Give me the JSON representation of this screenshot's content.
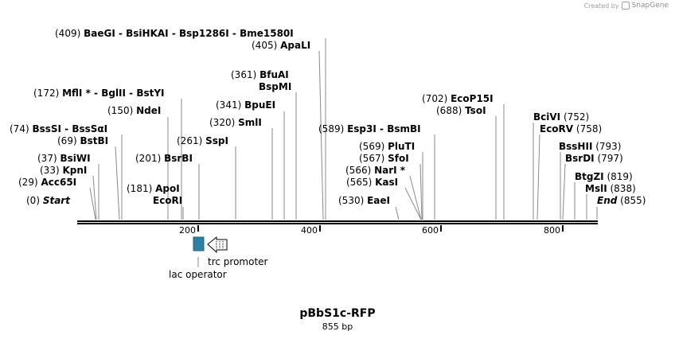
{
  "credit": {
    "prefix": "Created by",
    "brand": "SnapGene"
  },
  "plasmid": {
    "name": "pBbS1c-RFP",
    "size_label": "855 bp",
    "length": 855
  },
  "axis_ticks": [
    "200",
    "400",
    "600",
    "800"
  ],
  "sites": [
    {
      "id": "bae",
      "pos": "(409)",
      "names": [
        "BaeGI",
        "BsiHKAI",
        "Bsp1286I",
        "Bme1580I"
      ]
    },
    {
      "id": "apal",
      "pos": "(405)",
      "names": [
        "ApaLI"
      ]
    },
    {
      "id": "bfuai",
      "pos": "(361)",
      "names": [
        "BfuAI"
      ]
    },
    {
      "id": "bspmi",
      "pos": "",
      "names": [
        "BspMI"
      ]
    },
    {
      "id": "bpuei",
      "pos": "(341)",
      "names": [
        "BpuEI"
      ]
    },
    {
      "id": "smli",
      "pos": "(320)",
      "names": [
        "SmlI"
      ]
    },
    {
      "id": "sspi",
      "pos": "(261)",
      "names": [
        "SspI"
      ]
    },
    {
      "id": "mfli",
      "pos": "(172)",
      "names": [
        "MflI *",
        "BglII",
        "BstYI"
      ]
    },
    {
      "id": "ndei",
      "pos": "(150)",
      "names": [
        "NdeI"
      ]
    },
    {
      "id": "bsssi",
      "pos": "(74)",
      "names": [
        "BssSI",
        "BssSαI"
      ]
    },
    {
      "id": "bstbi",
      "pos": "(69)",
      "names": [
        "BstBI"
      ]
    },
    {
      "id": "bsrbi",
      "pos": "(201)",
      "names": [
        "BsrBI"
      ]
    },
    {
      "id": "bsiwi",
      "pos": "(37)",
      "names": [
        "BsiWI"
      ]
    },
    {
      "id": "kpni",
      "pos": "(33)",
      "names": [
        "KpnI"
      ]
    },
    {
      "id": "acc65i",
      "pos": "(29)",
      "names": [
        "Acc65I"
      ]
    },
    {
      "id": "apoi",
      "pos": "(181)",
      "names": [
        "ApoI"
      ]
    },
    {
      "id": "ecori",
      "pos": "",
      "names": [
        "EcoRI"
      ]
    },
    {
      "id": "start",
      "pos": "(0)",
      "names": [
        "Start"
      ]
    },
    {
      "id": "esp3i",
      "pos": "(589)",
      "names": [
        "Esp3I",
        "BsmBI"
      ]
    },
    {
      "id": "plutI",
      "pos": "(569)",
      "names": [
        "PluTI"
      ]
    },
    {
      "id": "sfoi",
      "pos": "(567)",
      "names": [
        "SfoI"
      ]
    },
    {
      "id": "nari",
      "pos": "(566)",
      "names": [
        "NarI *"
      ]
    },
    {
      "id": "kasi",
      "pos": "(565)",
      "names": [
        "KasI"
      ]
    },
    {
      "id": "eaei",
      "pos": "(530)",
      "names": [
        "EaeI"
      ]
    },
    {
      "id": "ecop15i",
      "pos": "(702)",
      "names": [
        "EcoP15I"
      ]
    },
    {
      "id": "tsoi",
      "pos": "(688)",
      "names": [
        "TsoI"
      ]
    },
    {
      "id": "bcivi",
      "pos": "(752)",
      "names": [
        "BciVI"
      ]
    },
    {
      "id": "ecorv",
      "pos": "(758)",
      "names": [
        "EcoRV"
      ]
    },
    {
      "id": "bsshii",
      "pos": "(793)",
      "names": [
        "BssHII"
      ]
    },
    {
      "id": "bsrdi",
      "pos": "(797)",
      "names": [
        "BsrDI"
      ]
    },
    {
      "id": "btgzi",
      "pos": "(819)",
      "names": [
        "BtgZI"
      ]
    },
    {
      "id": "msli",
      "pos": "(838)",
      "names": [
        "MslI"
      ]
    },
    {
      "id": "end",
      "pos": "(855)",
      "names": [
        "End"
      ]
    }
  ],
  "features": [
    {
      "id": "lac",
      "label": "lac operator",
      "color": "#2d7fa3"
    },
    {
      "id": "trc",
      "label": "trc promoter",
      "color": "#ffffff"
    }
  ]
}
